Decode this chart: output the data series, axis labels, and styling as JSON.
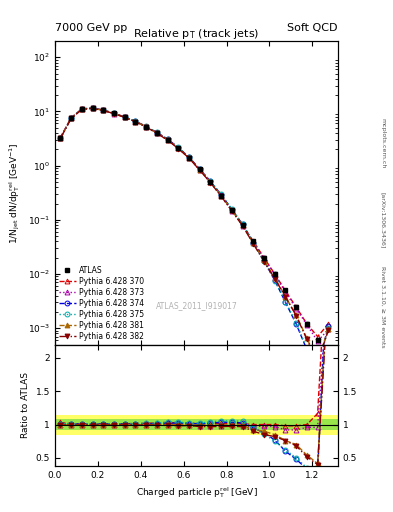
{
  "title_left": "7000 GeV pp",
  "title_right": "Soft QCD",
  "plot_title": "Relative p$_{\\mathrm{T}}$ (track jets)",
  "xlabel": "Charged particle p$_{\\mathrm{T}}^{\\mathrm{rel}}$ [GeV]",
  "ylabel_main": "1/N$_{\\mathrm{jet}}$ dN/dp$_{\\mathrm{T}}^{\\mathrm{rel}}$ [GeV$^{-1}$]",
  "ylabel_ratio": "Ratio to ATLAS",
  "watermark": "ATLAS_2011_I919017",
  "right_label": "Rivet 3.1.10, ≥ 3M events",
  "right_label2": "[arXiv:1306.3436]",
  "right_label3": "mcplots.cern.ch",
  "x_data": [
    0.025,
    0.075,
    0.125,
    0.175,
    0.225,
    0.275,
    0.325,
    0.375,
    0.425,
    0.475,
    0.525,
    0.575,
    0.625,
    0.675,
    0.725,
    0.775,
    0.825,
    0.875,
    0.925,
    0.975,
    1.025,
    1.075,
    1.125,
    1.175,
    1.225,
    1.275
  ],
  "atlas_y": [
    3.2,
    7.5,
    11.0,
    11.5,
    10.5,
    9.2,
    7.8,
    6.5,
    5.2,
    4.0,
    3.0,
    2.1,
    1.4,
    0.85,
    0.5,
    0.28,
    0.15,
    0.08,
    0.04,
    0.02,
    0.01,
    0.005,
    0.0025,
    0.0012,
    0.0006,
    0.0003
  ],
  "atlas_yerr": [
    0.15,
    0.3,
    0.4,
    0.4,
    0.35,
    0.3,
    0.25,
    0.22,
    0.18,
    0.14,
    0.11,
    0.08,
    0.06,
    0.04,
    0.025,
    0.015,
    0.009,
    0.005,
    0.003,
    0.0015,
    0.0008,
    0.0004,
    0.0002,
    0.0001,
    5e-05,
    3e-05
  ],
  "mc_lines": [
    {
      "label": "Pythia 6.428 370",
      "color": "#dd0000",
      "linestyle": "--",
      "marker": "^",
      "markerfill": "none",
      "y": [
        3.3,
        7.6,
        11.1,
        11.6,
        10.6,
        9.3,
        7.9,
        6.6,
        5.3,
        4.1,
        3.1,
        2.15,
        1.43,
        0.86,
        0.505,
        0.285,
        0.152,
        0.081,
        0.04,
        0.02,
        0.01,
        0.0049,
        0.00245,
        0.0012,
        0.0007,
        0.0012
      ]
    },
    {
      "label": "Pythia 6.428 373",
      "color": "#aa00aa",
      "linestyle": ":",
      "marker": "^",
      "markerfill": "none",
      "y": [
        3.18,
        7.45,
        10.95,
        11.45,
        10.45,
        9.15,
        7.78,
        6.48,
        5.18,
        3.98,
        2.98,
        2.08,
        1.39,
        0.83,
        0.49,
        0.275,
        0.148,
        0.078,
        0.039,
        0.0195,
        0.0097,
        0.0046,
        0.0023,
        0.00115,
        0.000575,
        0.00095
      ]
    },
    {
      "label": "Pythia 6.428 374",
      "color": "#0000dd",
      "linestyle": "--",
      "marker": "o",
      "markerfill": "none",
      "y": [
        3.22,
        7.55,
        11.05,
        11.55,
        10.55,
        9.25,
        7.85,
        6.55,
        5.25,
        4.05,
        3.05,
        2.15,
        1.42,
        0.86,
        0.51,
        0.29,
        0.155,
        0.082,
        0.038,
        0.0175,
        0.0077,
        0.003,
        0.0012,
        0.0004,
        0.00018,
        0.0011
      ]
    },
    {
      "label": "Pythia 6.428 375",
      "color": "#00aaaa",
      "linestyle": ":",
      "marker": "o",
      "markerfill": "none",
      "y": [
        3.25,
        7.6,
        11.1,
        11.6,
        10.6,
        9.3,
        7.9,
        6.6,
        5.3,
        4.1,
        3.1,
        2.18,
        1.43,
        0.87,
        0.52,
        0.295,
        0.158,
        0.084,
        0.038,
        0.0172,
        0.0075,
        0.0031,
        0.00125,
        0.00042,
        0.00019,
        0.001
      ]
    },
    {
      "label": "Pythia 6.428 381",
      "color": "#aa6600",
      "linestyle": "--",
      "marker": "^",
      "markerfill": "full",
      "y": [
        3.2,
        7.48,
        10.98,
        11.48,
        10.48,
        9.18,
        7.8,
        6.5,
        5.2,
        4.0,
        3.0,
        2.1,
        1.4,
        0.84,
        0.495,
        0.278,
        0.149,
        0.079,
        0.037,
        0.018,
        0.0085,
        0.0038,
        0.00175,
        0.00065,
        0.00025,
        0.00095
      ]
    },
    {
      "label": "Pythia 6.428 382",
      "color": "#880000",
      "linestyle": "-.",
      "marker": "v",
      "markerfill": "full",
      "y": [
        3.17,
        7.42,
        10.92,
        11.42,
        10.42,
        9.12,
        7.76,
        6.46,
        5.16,
        3.96,
        2.96,
        2.06,
        1.38,
        0.825,
        0.485,
        0.272,
        0.146,
        0.0775,
        0.036,
        0.017,
        0.0082,
        0.0038,
        0.0017,
        0.00062,
        0.00024,
        0.00091
      ]
    }
  ],
  "band_yellow": {
    "ylow": 0.85,
    "yhigh": 1.15
  },
  "band_green": {
    "ylow": 0.92,
    "yhigh": 1.08
  },
  "ylim_main": [
    0.0005,
    200
  ],
  "ylim_ratio": [
    0.38,
    2.2
  ],
  "xlim": [
    0.0,
    1.32
  ],
  "ratio_yticks": [
    0.5,
    1.0,
    1.5,
    2.0
  ],
  "ratio_yticklabels": [
    "0.5",
    "1",
    "1.5",
    "2"
  ]
}
